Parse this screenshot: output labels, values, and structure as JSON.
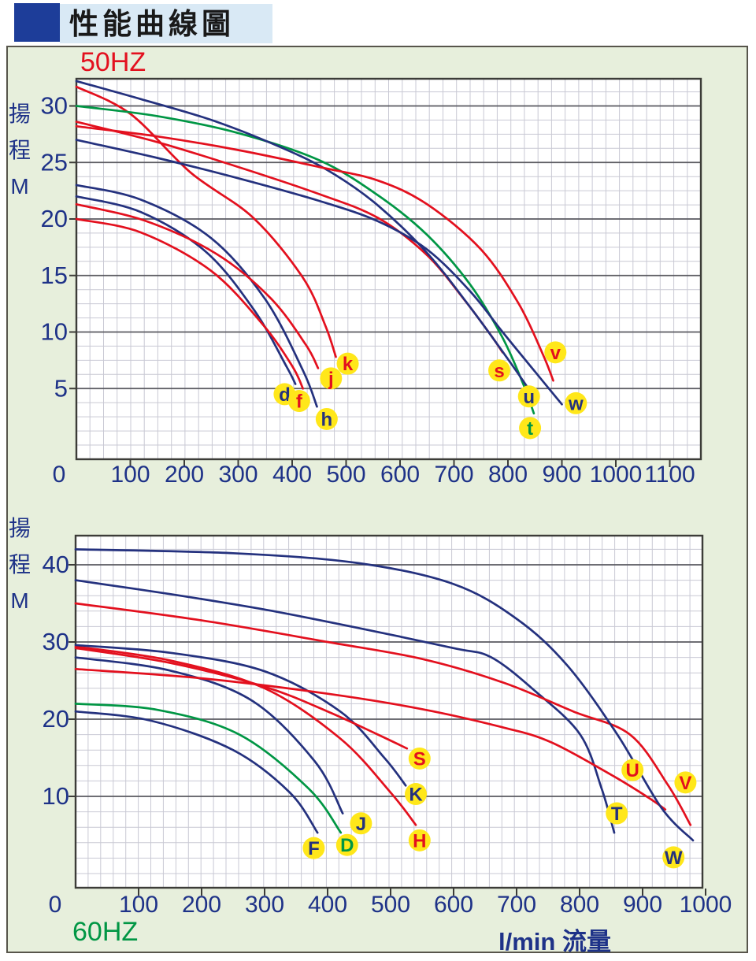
{
  "title": {
    "text": "性能曲線圖"
  },
  "colors": {
    "navy": "#24317e",
    "red": "#e3101e",
    "green": "#009644",
    "yellow": "#ffe71a",
    "tick_text": "#1e3288",
    "grid_minor": "#c9c9d4",
    "grid_major": "#5a5a60",
    "plot_border": "#3c3c38",
    "panel_bg": "#e7efdc",
    "title_bg": "#d9e9f5",
    "title_square": "#1d3d99"
  },
  "chart_data": [
    {
      "type": "line",
      "freq_label": "50HZ",
      "freq_color": "#e3101e",
      "ylabel_chars": [
        "揚",
        "程",
        "M"
      ],
      "xlabel": "",
      "x_ticks": [
        0,
        100,
        200,
        300,
        400,
        500,
        600,
        700,
        800,
        900,
        1000,
        1100
      ],
      "y_ticks": [
        5,
        10,
        15,
        20,
        25,
        30
      ],
      "xlim": [
        0,
        1158
      ],
      "ylim": [
        -1.5,
        32.5
      ],
      "grid": true,
      "series": [
        {
          "name": "d",
          "color": "navy",
          "points": [
            [
              0,
              22
            ],
            [
              120,
              20.6
            ],
            [
              240,
              17.1
            ],
            [
              330,
              11.9
            ],
            [
              390,
              6.9
            ],
            [
              406,
              5.4
            ]
          ],
          "label": {
            "text": "d",
            "x": 386,
            "y": 4.5,
            "color": "navy"
          }
        },
        {
          "name": "f",
          "color": "red",
          "points": [
            [
              0,
              20
            ],
            [
              120,
              18.8
            ],
            [
              250,
              15.4
            ],
            [
              345,
              10.7
            ],
            [
              400,
              7
            ],
            [
              420,
              5
            ]
          ],
          "label": {
            "text": "f",
            "x": 413,
            "y": 3.9,
            "color": "red"
          }
        },
        {
          "name": "h",
          "color": "navy",
          "points": [
            [
              0,
              23
            ],
            [
              120,
              21.7
            ],
            [
              250,
              18.3
            ],
            [
              350,
              12.9
            ],
            [
              420,
              6.6
            ],
            [
              446,
              3.4
            ]
          ],
          "label": {
            "text": "h",
            "x": 464,
            "y": 2.3,
            "color": "navy"
          }
        },
        {
          "name": "j",
          "color": "red",
          "points": [
            [
              0,
              21.3
            ],
            [
              130,
              19.8
            ],
            [
              260,
              16.9
            ],
            [
              360,
              13
            ],
            [
              425,
              8.9
            ],
            [
              448,
              6.8
            ]
          ],
          "label": {
            "text": "j",
            "x": 472,
            "y": 5.9,
            "color": "red"
          }
        },
        {
          "name": "k",
          "color": "red",
          "points": [
            [
              0,
              31.7
            ],
            [
              100,
              29.3
            ],
            [
              212,
              24.1
            ],
            [
              328,
              20.1
            ],
            [
              420,
              14.8
            ],
            [
              462,
              10.5
            ],
            [
              481,
              7.8
            ]
          ],
          "label": {
            "text": "k",
            "x": 503,
            "y": 7.2,
            "color": "red"
          }
        },
        {
          "name": "s",
          "color": "red",
          "points": [
            [
              0,
              28.6
            ],
            [
              150,
              26.8
            ],
            [
              300,
              24.6
            ],
            [
              450,
              22.2
            ],
            [
              559,
              20.1
            ],
            [
              650,
              16.8
            ],
            [
              720,
              12.8
            ],
            [
              770,
              9.6
            ],
            [
              790,
              8.2
            ]
          ],
          "label": {
            "text": "s",
            "x": 784,
            "y": 6.6,
            "color": "red"
          }
        },
        {
          "name": "t",
          "color": "green",
          "points": [
            [
              0,
              30
            ],
            [
              150,
              29.1
            ],
            [
              300,
              27.6
            ],
            [
              450,
              25.2
            ],
            [
              559,
              22.1
            ],
            [
              650,
              18.6
            ],
            [
              730,
              14.2
            ],
            [
              790,
              9.5
            ],
            [
              830,
              5.2
            ],
            [
              848,
              2.8
            ]
          ],
          "label": {
            "text": "t",
            "x": 841,
            "y": 1.5,
            "color": "green"
          }
        },
        {
          "name": "u",
          "color": "navy",
          "points": [
            [
              0,
              32.2
            ],
            [
              120,
              30.6
            ],
            [
              260,
              28.6
            ],
            [
              400,
              25.9
            ],
            [
              480,
              23.9
            ],
            [
              559,
              21.2
            ],
            [
              650,
              17
            ],
            [
              730,
              12.2
            ],
            [
              800,
              7.6
            ],
            [
              838,
              5
            ]
          ],
          "label": {
            "text": "u",
            "x": 839,
            "y": 4.3,
            "color": "navy"
          }
        },
        {
          "name": "v",
          "color": "red",
          "points": [
            [
              0,
              28.2
            ],
            [
              150,
              27.3
            ],
            [
              300,
              26.1
            ],
            [
              450,
              24.6
            ],
            [
              559,
              23.4
            ],
            [
              650,
              21.3
            ],
            [
              750,
              17.3
            ],
            [
              820,
              12.5
            ],
            [
              865,
              8
            ],
            [
              884,
              5.7
            ]
          ],
          "label": {
            "text": "v",
            "x": 888,
            "y": 8.2,
            "color": "red"
          }
        },
        {
          "name": "w",
          "color": "navy",
          "points": [
            [
              0,
              27
            ],
            [
              150,
              25.4
            ],
            [
              300,
              23.6
            ],
            [
              450,
              21.6
            ],
            [
              559,
              19.8
            ],
            [
              650,
              17.3
            ],
            [
              730,
              13.6
            ],
            [
              790,
              10
            ],
            [
              850,
              6.5
            ],
            [
              900,
              3.6
            ]
          ],
          "label": {
            "text": "w",
            "x": 926,
            "y": 3.7,
            "color": "navy"
          }
        }
      ]
    },
    {
      "type": "line",
      "freq_label": "60HZ",
      "freq_color": "#009644",
      "ylabel_chars": [
        "揚",
        "程",
        "M"
      ],
      "xlabel": "l/min 流量",
      "x_ticks": [
        0,
        100,
        200,
        300,
        400,
        500,
        600,
        700,
        800,
        900,
        1000
      ],
      "y_ticks": [
        10,
        20,
        30,
        40
      ],
      "xlim": [
        0,
        995
      ],
      "ylim": [
        -1.8,
        43.8
      ],
      "grid": true,
      "series": [
        {
          "name": "F",
          "color": "navy",
          "points": [
            [
              0,
              21
            ],
            [
              120,
              19.8
            ],
            [
              250,
              16
            ],
            [
              340,
              10.5
            ],
            [
              384,
              5.3
            ]
          ],
          "label": {
            "text": "F",
            "x": 378,
            "y": 3.3,
            "color": "navy"
          }
        },
        {
          "name": "D",
          "color": "green",
          "points": [
            [
              0,
              22
            ],
            [
              130,
              21.2
            ],
            [
              260,
              18
            ],
            [
              370,
              11
            ],
            [
              421,
              5.3
            ]
          ],
          "label": {
            "text": "D",
            "x": 431,
            "y": 3.7,
            "color": "green"
          }
        },
        {
          "name": "J",
          "color": "navy",
          "points": [
            [
              0,
              28
            ],
            [
              150,
              26.3
            ],
            [
              280,
              22.4
            ],
            [
              380,
              14.5
            ],
            [
              424,
              7.8
            ]
          ],
          "label": {
            "text": "J",
            "x": 453,
            "y": 6.5,
            "color": "navy"
          }
        },
        {
          "name": "H",
          "color": "red",
          "points": [
            [
              0,
              29.4
            ],
            [
              150,
              27.6
            ],
            [
              300,
              24
            ],
            [
              420,
              17.5
            ],
            [
              500,
              10.5
            ],
            [
              540,
              6.3
            ]
          ],
          "label": {
            "text": "H",
            "x": 546,
            "y": 4.3,
            "color": "red"
          }
        },
        {
          "name": "K",
          "color": "navy",
          "points": [
            [
              0,
              29.6
            ],
            [
              150,
              28.6
            ],
            [
              300,
              26.2
            ],
            [
              420,
              21
            ],
            [
              490,
              15
            ],
            [
              524,
              11.4
            ]
          ],
          "label": {
            "text": "K",
            "x": 540,
            "y": 10.3,
            "color": "navy"
          }
        },
        {
          "name": "S",
          "color": "red",
          "points": [
            [
              0,
              29.2
            ],
            [
              150,
              27.3
            ],
            [
              300,
              24.2
            ],
            [
              400,
              21
            ],
            [
              480,
              18
            ],
            [
              526,
              16.2
            ]
          ],
          "label": {
            "text": "S",
            "x": 546,
            "y": 14.9,
            "color": "red"
          }
        },
        {
          "name": "T",
          "color": "navy",
          "points": [
            [
              0,
              38
            ],
            [
              150,
              36.2
            ],
            [
              300,
              34.2
            ],
            [
              450,
              31.8
            ],
            [
              600,
              29.2
            ],
            [
              660,
              28
            ],
            [
              730,
              23.6
            ],
            [
              801,
              18
            ],
            [
              835,
              11
            ],
            [
              855,
              5.3
            ]
          ],
          "label": {
            "text": "T",
            "x": 859,
            "y": 7.8,
            "color": "navy"
          }
        },
        {
          "name": "U",
          "color": "red",
          "points": [
            [
              0,
              26.5
            ],
            [
              200,
              25.3
            ],
            [
              400,
              23.3
            ],
            [
              550,
              21.3
            ],
            [
              680,
              18.9
            ],
            [
              755,
              17
            ],
            [
              850,
              12.8
            ],
            [
              910,
              9.8
            ],
            [
              936,
              8.3
            ]
          ],
          "label": {
            "text": "U",
            "x": 884,
            "y": 13.4,
            "color": "red"
          }
        },
        {
          "name": "V",
          "color": "red",
          "points": [
            [
              0,
              35
            ],
            [
              200,
              32.8
            ],
            [
              400,
              30
            ],
            [
              550,
              27.8
            ],
            [
              680,
              24.7
            ],
            [
              790,
              21
            ],
            [
              880,
              18
            ],
            [
              940,
              11.5
            ],
            [
              976,
              6.3
            ]
          ],
          "label": {
            "text": "V",
            "x": 968,
            "y": 11.8,
            "color": "red"
          }
        },
        {
          "name": "W",
          "color": "navy",
          "points": [
            [
              0,
              42
            ],
            [
              250,
              41.5
            ],
            [
              450,
              40.2
            ],
            [
              600,
              37.5
            ],
            [
              700,
              33
            ],
            [
              780,
              27
            ],
            [
              860,
              18
            ],
            [
              930,
              8.5
            ],
            [
              980,
              4.3
            ]
          ],
          "label": {
            "text": "W",
            "x": 949,
            "y": 2.1,
            "color": "navy"
          }
        }
      ]
    }
  ]
}
